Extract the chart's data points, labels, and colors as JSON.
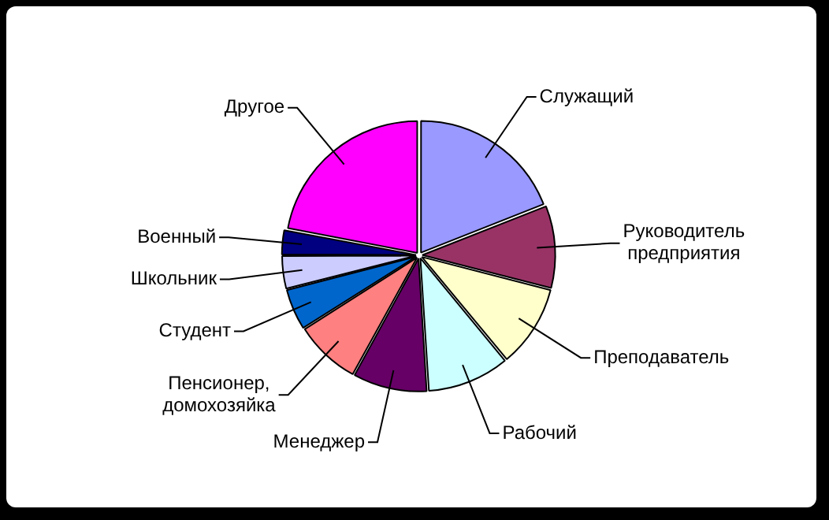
{
  "chart_data": {
    "type": "pie",
    "categories": [
      "Служащий",
      "Руководитель\nпредприятия",
      "Преподаватель",
      "Рабочий",
      "Менеджер",
      "Пенсионер,\nдомохозяйка",
      "Студент",
      "Школьник",
      "Военный",
      "Другое"
    ],
    "values": [
      19,
      10,
      10,
      10,
      9,
      8,
      5,
      4,
      3,
      22
    ],
    "colors": [
      "#9999ff",
      "#993366",
      "#ffffcc",
      "#ccffff",
      "#660066",
      "#ff8080",
      "#0066cc",
      "#ccccff",
      "#000080",
      "#ff00ff"
    ],
    "legend": false
  }
}
